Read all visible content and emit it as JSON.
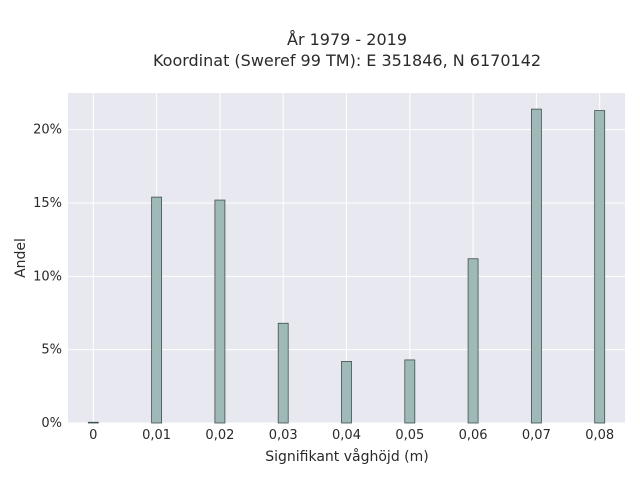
{
  "chart_data": {
    "type": "bar",
    "title_line1": "År 1979 - 2019",
    "title_line2": "Koordinat (Sweref 99 TM): E 351846, N 6170142",
    "xlabel": "Signifikant våghöjd (m)",
    "ylabel": "Andel",
    "categories": [
      "0",
      "0,01",
      "0,02",
      "0,03",
      "0,04",
      "0,05",
      "0,06",
      "0,07",
      "0,08"
    ],
    "x": [
      0,
      0.01,
      0.02,
      0.03,
      0.04,
      0.05,
      0.06,
      0.07,
      0.08
    ],
    "values": [
      0.05,
      15.4,
      15.2,
      6.8,
      4.2,
      4.3,
      11.2,
      21.4,
      21.3
    ],
    "ylim": [
      0,
      22.5
    ],
    "xlim": [
      -0.004,
      0.084
    ],
    "yticks": [
      0,
      5,
      10,
      15,
      20
    ],
    "ytick_labels": [
      "0%",
      "5%",
      "10%",
      "15%",
      "20%"
    ],
    "grid": true,
    "colors": {
      "plot_bg": "#e8e8f0",
      "grid": "#ffffff",
      "bar_fill": "#9fb8b8",
      "bar_stroke": "#3f4f4f"
    }
  }
}
